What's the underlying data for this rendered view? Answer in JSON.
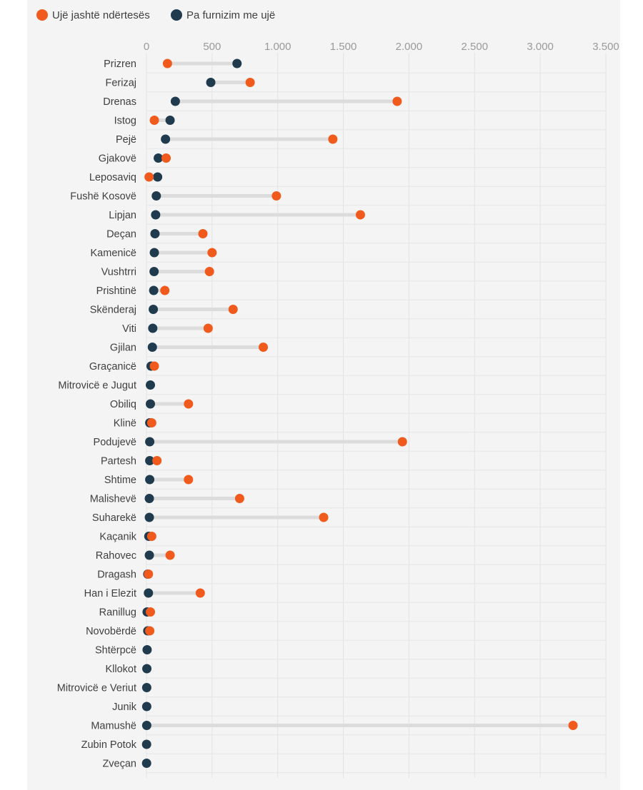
{
  "chart_data": {
    "type": "dumbbell",
    "title": "",
    "xlabel": "",
    "ylabel": "",
    "xlim": [
      0,
      3500
    ],
    "xticks": [
      0,
      500,
      1000,
      1500,
      2000,
      2500,
      3000,
      3500
    ],
    "xtick_labels": [
      "0",
      "500",
      "1.000",
      "1.500",
      "2.000",
      "2.500",
      "3.000",
      "3.500"
    ],
    "grid": true,
    "legend_position": "top-left",
    "colors": {
      "outside": "#f15a1d",
      "none": "#1f3b4d",
      "connector": "#dcdcdc"
    },
    "categories": [
      "Prizren",
      "Ferizaj",
      "Drenas",
      "Istog",
      "Pejë",
      "Gjakovë",
      "Leposaviq",
      "Fushë Kosovë",
      "Lipjan",
      "Deçan",
      "Kamenicë",
      "Vushtrri",
      "Prishtinë",
      "Skënderaj",
      "Viti",
      "Gjilan",
      "Graçanicë",
      "Mitrovicë e Jugut",
      "Obiliq",
      "Klinë",
      "Podujevë",
      "Partesh",
      "Shtime",
      "Malishevë",
      "Suharekë",
      "Kaçanik",
      "Rahovec",
      "Dragash",
      "Han i Elezit",
      "Ranillug",
      "Novobërdë",
      "Shtërpcë",
      "Kllokot",
      "Mitrovicë e Veriut",
      "Junik",
      "Mamushë",
      "Zubin Potok",
      "Zveçan"
    ],
    "series": [
      {
        "name": "Ujë jashtë ndërtesës",
        "key": "outside",
        "values": [
          160,
          790,
          1910,
          60,
          1420,
          150,
          20,
          990,
          1630,
          430,
          500,
          480,
          140,
          660,
          470,
          890,
          60,
          null,
          320,
          40,
          1950,
          80,
          320,
          710,
          1350,
          40,
          180,
          15,
          410,
          30,
          25,
          null,
          null,
          null,
          null,
          3250,
          null,
          null
        ]
      },
      {
        "name": "Pa furnizim me ujë",
        "key": "none",
        "values": [
          690,
          490,
          220,
          180,
          145,
          90,
          85,
          75,
          70,
          65,
          60,
          58,
          55,
          52,
          48,
          45,
          35,
          30,
          30,
          25,
          25,
          25,
          25,
          22,
          22,
          18,
          22,
          10,
          15,
          5,
          10,
          5,
          3,
          2,
          2,
          2,
          1,
          1
        ]
      }
    ]
  }
}
